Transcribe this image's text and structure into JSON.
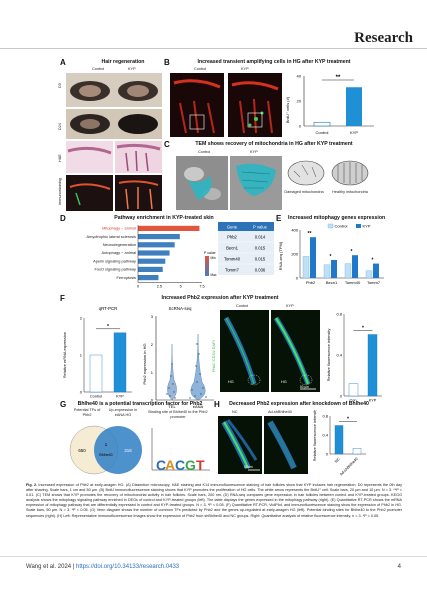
{
  "header": {
    "journal": "Research"
  },
  "panels": {
    "A": {
      "letter": "A",
      "title": "Hair regeneration",
      "col_control": "Control",
      "col_kyp": "KYP",
      "rows": [
        "D0",
        "D24",
        "H&E",
        "Immunostaining"
      ]
    },
    "B": {
      "letter": "B",
      "title": "Increased transient amplifying cells in HG after KYP treatment",
      "img_control": "Control",
      "img_kyp": "KYP",
      "chart": {
        "ylabel": "BrdU⁺ cells (#)",
        "yticks": [
          "0",
          "20",
          "40"
        ],
        "sig": "**",
        "xticklabels": [
          "Control",
          "KYP"
        ]
      }
    },
    "C": {
      "letter": "C",
      "title": "TEM shows recovery of mitochondria in HG after KYP treatment",
      "col_control": "Control",
      "col_kyp": "KYP",
      "legend_damaged": "Damaged mitochondria",
      "legend_healthy": "Healthy mitochondria"
    },
    "D": {
      "letter": "D",
      "title": "Pathway enrichment in KYP-treated skin",
      "pathways": [
        "Mitophagy − animal",
        "Amyotrophic lateral sclerosis",
        "Neurodegeneration",
        "Autophagy − animal",
        "Apelin signaling pathway",
        "FoxO signaling pathway",
        "Ferroptosis"
      ],
      "xticks": [
        "0",
        "2.5",
        "5",
        "7.5"
      ],
      "pvalue_label": "P value",
      "pvalue_min": "Min",
      "pvalue_max": "Max",
      "table_headers": [
        "Gene",
        "P value"
      ],
      "table_rows": [
        [
          "Phb2",
          "0.014"
        ],
        [
          "Becn1",
          "0.015"
        ],
        [
          "Tomm40",
          "0.015"
        ],
        [
          "Tomm7",
          "0.036"
        ]
      ]
    },
    "E": {
      "letter": "E",
      "title": "Increased mitophagy genes expression",
      "legend": [
        "Control",
        "KYP"
      ],
      "ylabel": "RNA-seq (TPM)",
      "yticks": [
        "0",
        "200",
        "400"
      ],
      "sig": [
        "**",
        "*",
        "*",
        "*"
      ]
    },
    "F": {
      "letter": "F",
      "title": "Increased Phb2 expression after KYP treatment",
      "qpcr_title": "qRT-PCR",
      "qpcr_ylabel": "Relative mRNA expression",
      "qpcr_yticks": [
        "0",
        "1",
        "2"
      ],
      "qpcr_sig": "*",
      "qpcr_xticks": [
        "Control",
        "KYP"
      ],
      "sc_title": "ScRNA-seq",
      "sc_ylabel": "Phb2 expression in HG",
      "sc_yticks": [
        "0",
        "1",
        "2",
        "3"
      ],
      "sc_xticks": [
        "TEL",
        "eANA"
      ],
      "img_control": "Control",
      "img_kyp": "KYP",
      "img_side": "Phb2 /CD34/ DAPI",
      "img_scale": "50 μm",
      "img_hg": "HG",
      "bar_ylabel": "Relative fluorescence intensity",
      "bar_yticks": [
        "0",
        "0.4",
        "0.8"
      ],
      "bar_sig": "*",
      "bar_xticks": [
        "Con.",
        "KYP"
      ]
    },
    "G": {
      "letter": "G",
      "title": "Bhlhe40 is a potential transcription factor for Phb2",
      "venn_left": "Potential TFs of Phb2",
      "venn_right": "Up-expression in eANA HG",
      "venn_values": [
        "650",
        "1",
        "216"
      ],
      "venn_center": "Bhlhe40",
      "motif_title": "Binding site of Bhlhe40 to the Phb2 promoter"
    },
    "H": {
      "letter": "H",
      "title": "Decreased Phb2 expression after knockdown of Bhlhe40",
      "img_nc": "NC",
      "img_ad": "Ad-shBhlhe40",
      "img_scale": "50 μm",
      "bar_ylabel": "Relative fluorescence intensity",
      "bar_yticks": [
        "0",
        "0.4",
        "0.8"
      ],
      "bar_sig": "*",
      "bar_xticks": [
        "NC",
        "Ad-shBhlhe40"
      ]
    }
  },
  "chart_data": [
    {
      "type": "bar",
      "title": "",
      "ylabel": "BrdU⁺ cells (#)",
      "categories": [
        "Control",
        "KYP"
      ],
      "values": [
        3,
        31
      ],
      "ylim": [
        0,
        40
      ]
    },
    {
      "type": "bar",
      "title": "Pathway enrichment in KYP-treated skin",
      "categories": [
        "Mitophagy − animal",
        "Amyotrophic lateral sclerosis",
        "Neurodegeneration",
        "Autophagy − animal",
        "Apelin signaling pathway",
        "FoxO signaling pathway",
        "Ferroptosis"
      ],
      "values": [
        7.2,
        4.9,
        4.3,
        3.7,
        3.2,
        2.9,
        2.4
      ],
      "xlim": [
        0,
        7.5
      ]
    },
    {
      "type": "bar",
      "title": "Increased mitophagy genes expression",
      "ylabel": "RNA-seq (TPM)",
      "categories": [
        "Phb2",
        "Becn1",
        "Tomm40",
        "Tomm7"
      ],
      "series": [
        {
          "name": "Control",
          "values": [
            180,
            110,
            120,
            60
          ]
        },
        {
          "name": "KYP",
          "values": [
            340,
            150,
            190,
            120
          ]
        }
      ],
      "ylim": [
        0,
        400
      ]
    },
    {
      "type": "bar",
      "title": "qRT-PCR",
      "ylabel": "Relative mRNA expression",
      "categories": [
        "Control",
        "KYP"
      ],
      "values": [
        1.0,
        1.6
      ],
      "ylim": [
        0,
        2
      ]
    },
    {
      "type": "bar",
      "title": "",
      "ylabel": "Relative fluorescence intensity",
      "categories": [
        "Con.",
        "KYP"
      ],
      "values": [
        0.12,
        0.6
      ],
      "ylim": [
        0,
        0.8
      ]
    },
    {
      "type": "bar",
      "title": "",
      "ylabel": "Relative fluorescence intensity",
      "categories": [
        "NC",
        "Ad-shBhlhe40"
      ],
      "values": [
        0.6,
        0.12
      ],
      "ylim": [
        0,
        0.8
      ]
    }
  ],
  "caption": {
    "lead": "Fig. 2.",
    "text": "Increased expression of Phb2 at early-anagen HG. (A) Dissection microscopy, H&E staining and K14 immunofluorescence staining of hair follicles show that KYP induces hair regeneration. D0 represents the 0th day after shaving. Scale bars, 1 cm and 50 μm. (B) BrdU immunofluorescence staining shows that KYP promotes the proliferation of HG cells. The white arrow represents the BrdU⁺ cell. Scale bars, 20 μm and 10 μm. N = 3. **P < 0.01. (C) TEM shows that KYP promotes the recovery of mitochondrial activity in hair follicles. Scale bars, 200 nm. (D) RNA-seq compares gene expression in hair follicles between control and KYP-treated groups. KEGG analysis shows the mitophagy signaling pathway enriched in DEGs of control and KYP-treated groups (left). The table displays the genes expressed in the mitophagy pathway (right). (E) Quantitative RT-PCR shows the mRNA expression of mitophagy pathway that are differentially expressed in control and KYP-treated groups. N = 3. *P < 0.05. (F) Quantitative RT-PCR, ViolPlot, and immunofluorescence staining show the expression of Phb2 in HG. Scale bars, 50 μm. N = 3. *P < 0.05. (G) Venn diagram shows the number of common TFs predicted by Phb2 and the genes up-regulated at early-anagen HG (left). Potential binding sites for Bhlhe40 to the Phb2 promoter sequences (right). (H) Left: Representative immunofluorescence images show the expression of Phb2 from shBhlhe40 and NC groups. Right: Quantitative analysis of relative fluorescence intensity. n = 3. *P < 0.05."
  },
  "footer": {
    "authors": "Wang et al. 2024 | ",
    "doi": "https://doi.org/10.34133/research.0433",
    "page": "4"
  }
}
